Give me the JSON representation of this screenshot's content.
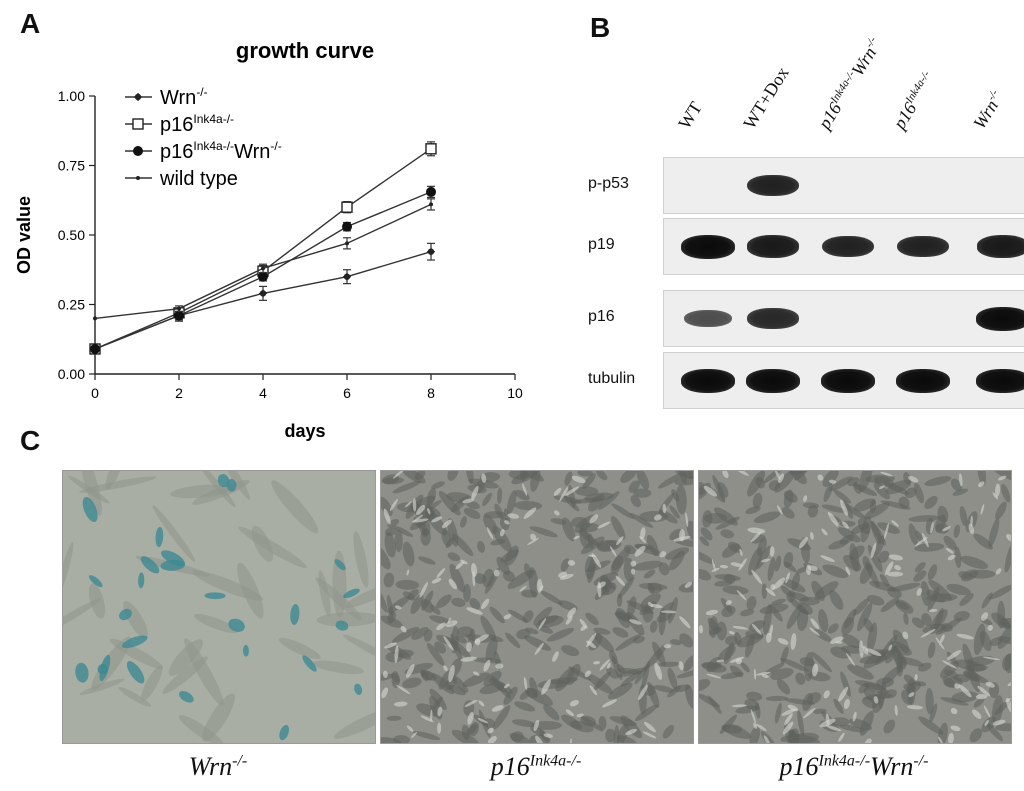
{
  "panels": {
    "a": "A",
    "b": "B",
    "c": "C"
  },
  "chart_data": {
    "type": "line",
    "title": "growth curve",
    "xlabel": "days",
    "ylabel": "OD value",
    "xlim": [
      0,
      10
    ],
    "ylim": [
      0,
      1.0
    ],
    "xticks": [
      "0",
      "2",
      "4",
      "6",
      "8",
      "10"
    ],
    "yticks": [
      "0.00",
      "0.25",
      "0.50",
      "0.75",
      "1.00"
    ],
    "legend_position": "top-left",
    "series": [
      {
        "name": "Wrn-/-",
        "name_base": "Wrn",
        "name_sup": "-/-",
        "marker": "star",
        "x": [
          0,
          2,
          4,
          6,
          8
        ],
        "y": [
          0.09,
          0.21,
          0.29,
          0.35,
          0.44
        ],
        "err": [
          0.01,
          0.02,
          0.025,
          0.025,
          0.03
        ]
      },
      {
        "name": "p16Ink4a-/-",
        "name_base": "p16",
        "name_sup": "Ink4a-/-",
        "marker": "open-square",
        "x": [
          0,
          2,
          4,
          6,
          8
        ],
        "y": [
          0.09,
          0.22,
          0.37,
          0.6,
          0.81
        ],
        "err": [
          0.01,
          0.015,
          0.02,
          0.02,
          0.025
        ]
      },
      {
        "name": "p16Ink4a-/-Wrn-/-",
        "name_base": "p16",
        "name_sup": "Ink4a-/-",
        "name_base2": "Wrn",
        "name_sup2": "-/-",
        "marker": "filled-circle",
        "x": [
          0,
          2,
          4,
          6,
          8
        ],
        "y": [
          0.09,
          0.21,
          0.35,
          0.53,
          0.655
        ],
        "err": [
          0.01,
          0.015,
          0.015,
          0.015,
          0.02
        ]
      },
      {
        "name": "wild type",
        "name_base": "wild type",
        "marker": "dot",
        "x": [
          0,
          2,
          4,
          6,
          8
        ],
        "y": [
          0.2,
          0.235,
          0.38,
          0.47,
          0.61
        ],
        "err": [
          0.0,
          0.01,
          0.015,
          0.02,
          0.02
        ]
      }
    ]
  },
  "blot": {
    "lanes": [
      {
        "base": "WT",
        "italic": false
      },
      {
        "base": "WT+Dox",
        "italic": false
      },
      {
        "base": "p16",
        "sup": "Ink4a-/-",
        "base2": "Wrn",
        "sup2": "-/-",
        "italic": true
      },
      {
        "base": "p16",
        "sup": "Ink4a-/-",
        "italic": true
      },
      {
        "base": "Wrn",
        "sup": "-/-",
        "italic": true
      }
    ],
    "rows": [
      {
        "label": "p-p53",
        "bands": [
          0,
          0.85,
          0,
          0,
          0
        ]
      },
      {
        "label": "p19",
        "bands": [
          1.0,
          0.9,
          0.85,
          0.85,
          0.9
        ]
      },
      {
        "label": "p16",
        "bands": [
          0.55,
          0.8,
          0,
          0,
          1.0
        ]
      },
      {
        "label": "tubulin",
        "bands": [
          1.0,
          1.0,
          1.0,
          1.0,
          1.0
        ]
      }
    ]
  },
  "micrographs": [
    {
      "base": "Wrn",
      "sup": "-/-"
    },
    {
      "base": "p16",
      "sup": "Ink4a-/-"
    },
    {
      "base": "p16",
      "sup": "Ink4a-/-",
      "base2": "Wrn",
      "sup2": "-/-"
    }
  ]
}
